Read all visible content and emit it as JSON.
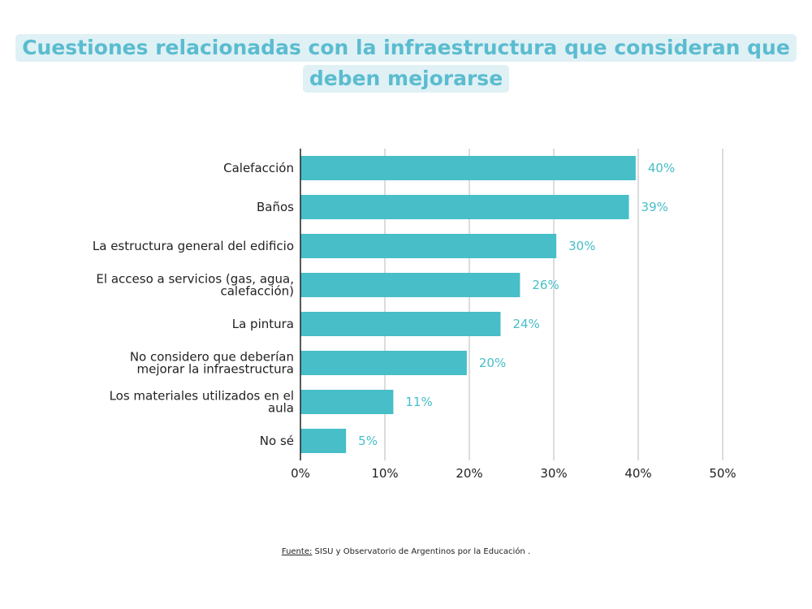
{
  "title_lines": [
    "Cuestiones relacionadas con la infraestructura que consideran que",
    "deben mejorarse"
  ],
  "footer": {
    "label": "Fuente:",
    "text": "SISU y Observatorio de Argentinos por la Educación ."
  },
  "colors": {
    "bar": "#47bec8",
    "data_label": "#47bec8",
    "grid": "#d0d0d0",
    "axis": "#222222",
    "title": "#5bbcd0",
    "title_bg": "#dff1f5"
  },
  "chart_data": {
    "type": "bar",
    "orientation": "horizontal",
    "title": "Cuestiones relacionadas con la infraestructura que consideran que deben mejorarse",
    "categories": [
      [
        "Calefacción"
      ],
      [
        "Baños"
      ],
      [
        "La estructura general del edificio"
      ],
      [
        "El acceso a servicios (gas, agua,",
        "calefacción)"
      ],
      [
        "La pintura"
      ],
      [
        "No considero que deberían",
        "mejorar la infraestructura"
      ],
      [
        "Los materiales utilizados en el",
        "aula"
      ],
      [
        "No sé"
      ]
    ],
    "values": [
      39.7,
      38.9,
      30.3,
      26.0,
      23.7,
      19.7,
      11.0,
      5.4
    ],
    "data_labels": [
      "40%",
      "39%",
      "30%",
      "26%",
      "24%",
      "20%",
      "11%",
      "5%"
    ],
    "xlim": [
      0,
      50
    ],
    "xticks": [
      0,
      10,
      20,
      30,
      40,
      50
    ],
    "xtick_labels": [
      "0%",
      "10%",
      "20%",
      "30%",
      "40%",
      "50%"
    ],
    "grid": true,
    "xlabel": "",
    "ylabel": ""
  }
}
